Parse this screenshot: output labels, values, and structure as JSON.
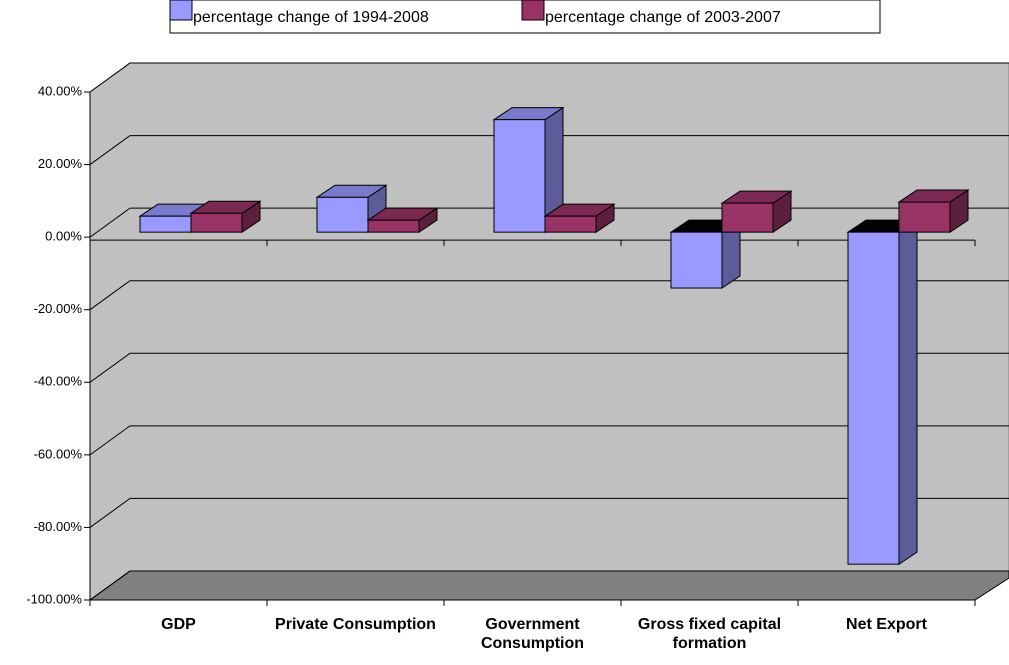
{
  "chart_data": {
    "type": "bar3d",
    "categories": [
      "GDP",
      "Private Consumption",
      "Government Consumption",
      "Gross fixed capital formation",
      "Net Export"
    ],
    "series": [
      {
        "name": "percentage change of 1994-2008",
        "color": "#9999ff",
        "values": [
          4.4,
          9.6,
          31,
          -15.4,
          -91.5
        ]
      },
      {
        "name": "percentage change of 2003-2007",
        "color": "#993366",
        "values": [
          5.2,
          3.3,
          4.4,
          8,
          8.3
        ]
      }
    ],
    "ylim": [
      -100,
      40
    ],
    "yticks": [
      {
        "value": -100,
        "label": "-100.00%"
      },
      {
        "value": -80,
        "label": "-80.00%"
      },
      {
        "value": -60,
        "label": "-60.00%"
      },
      {
        "value": -40,
        "label": "-40.00%"
      },
      {
        "value": -20,
        "label": "-20.00%"
      },
      {
        "value": 0,
        "label": "0.00%"
      },
      {
        "value": 20,
        "label": "20.00%"
      },
      {
        "value": 40,
        "label": "40.00%"
      }
    ],
    "grid": true
  }
}
